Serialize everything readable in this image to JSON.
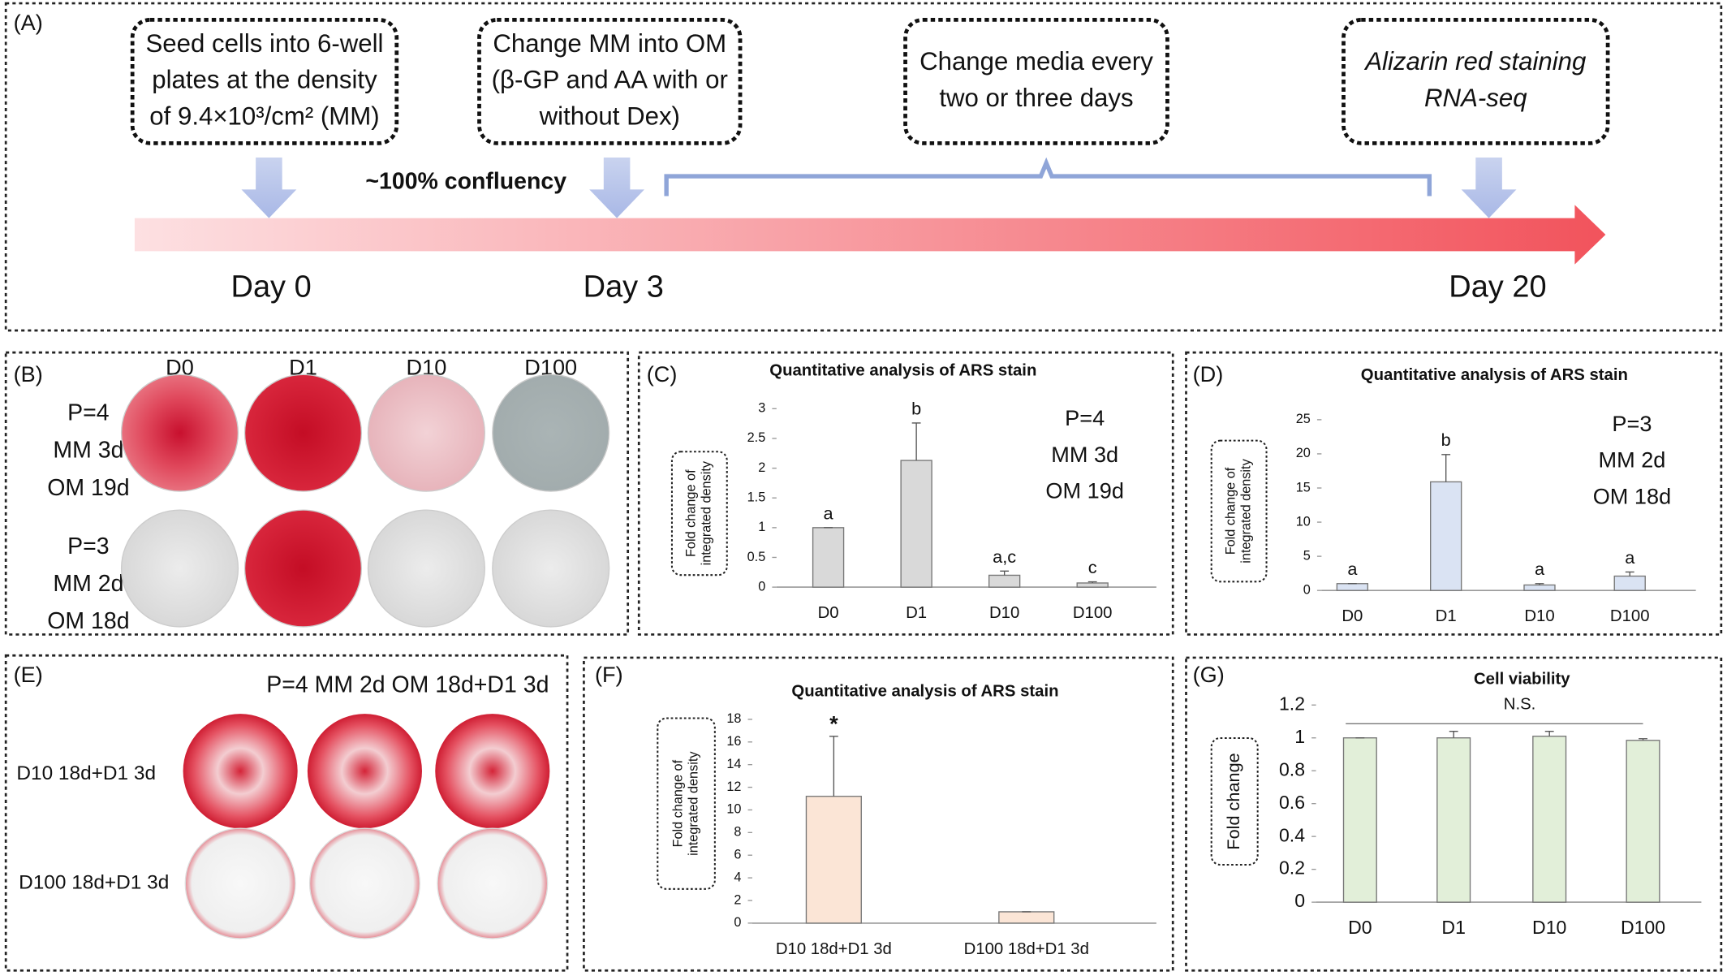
{
  "panel_labels": [
    "(A)",
    "(B)",
    "(C)",
    "(D)",
    "(E)",
    "(F)",
    "(G)"
  ],
  "timeline": {
    "steps": [
      [
        "Seed cells into 6-well",
        "plates at the density",
        "of 9.4×10³/cm² (MM)"
      ],
      [
        "Change MM into OM",
        "(β-GP and AA with or",
        "without Dex)"
      ],
      [
        "Change media every",
        "two or three days"
      ],
      [
        "Alizarin red staining",
        "RNA-seq"
      ]
    ],
    "confluency": "~100% confluency",
    "days": [
      "Day 0",
      "Day 3",
      "Day 20"
    ]
  },
  "plates_b": {
    "columns": [
      "D0",
      "D1",
      "D10",
      "D100"
    ],
    "rows": [
      [
        "P=4",
        "MM 3d",
        "OM 19d"
      ],
      [
        "P=3",
        "MM 2d",
        "OM 18d"
      ]
    ]
  },
  "plates_e": {
    "title": "P=4  MM 2d OM 18d+D1 3d",
    "rows": [
      "D10 18d+D1 3d",
      "D100 18d+D1 3d"
    ]
  },
  "chart_data": [
    {
      "type": "bar",
      "title": "Quantitative analysis of ARS stain",
      "ylabel": [
        "Fold change of",
        "integrated density"
      ],
      "categories": [
        "D0",
        "D1",
        "D10",
        "D100"
      ],
      "values": [
        1,
        2.13,
        0.2,
        0.07
      ],
      "errors": [
        0,
        0.63,
        0.07,
        0.02
      ],
      "letters": [
        "a",
        "b",
        "a,c",
        "c"
      ],
      "note": [
        "P=4",
        "MM 3d",
        "OM 19d"
      ],
      "color": "#d9d9d9",
      "ylim": [
        0,
        3
      ],
      "yticks": [
        0,
        0.5,
        1,
        1.5,
        2,
        2.5,
        3
      ]
    },
    {
      "type": "bar",
      "title": "Quantitative analysis of ARS stain",
      "ylabel": [
        "Fold change of",
        "integrated density"
      ],
      "categories": [
        "D0",
        "D1",
        "D10",
        "D100"
      ],
      "values": [
        1,
        15.9,
        0.8,
        2.1
      ],
      "errors": [
        0,
        4,
        0.2,
        0.6
      ],
      "letters": [
        "a",
        "b",
        "a",
        "a"
      ],
      "note": [
        "P=3",
        "MM 2d",
        "OM 18d"
      ],
      "color": "#dae3f3",
      "ylim": [
        0,
        25
      ],
      "yticks": [
        0,
        5,
        10,
        15,
        20,
        25
      ]
    },
    {
      "type": "bar",
      "title": "Quantitative analysis of ARS stain",
      "ylabel": [
        "Fold change of",
        "integrated density"
      ],
      "categories": [
        "D10 18d+D1 3d",
        "D100 18d+D1 3d"
      ],
      "values": [
        11.2,
        1
      ],
      "errors": [
        5.3,
        0
      ],
      "star_label": "*",
      "color": "#fbe5d6",
      "ylim": [
        0,
        18
      ],
      "yticks": [
        0,
        2,
        4,
        6,
        8,
        10,
        12,
        14,
        16,
        18
      ]
    },
    {
      "type": "bar",
      "title": "Cell viability",
      "ylabel": [
        "Fold change"
      ],
      "categories": [
        "D0",
        "D1",
        "D10",
        "D100"
      ],
      "values": [
        1,
        1,
        1.01,
        0.985
      ],
      "errors": [
        0,
        0.04,
        0.03,
        0.01
      ],
      "ns_label": "N.S.",
      "color": "#e2efd9",
      "ylim": [
        0,
        1.2
      ],
      "yticks": [
        0,
        0.2,
        0.4,
        0.6,
        0.8,
        1,
        1.2
      ]
    }
  ]
}
